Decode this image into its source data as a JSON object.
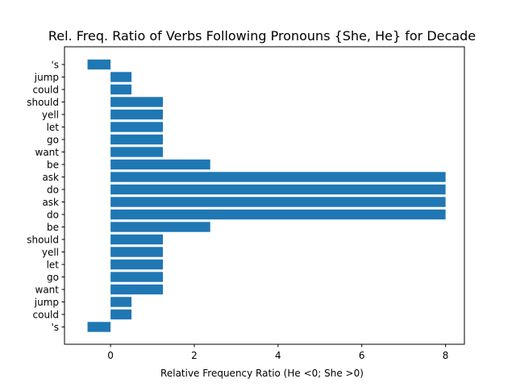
{
  "chart_data": {
    "type": "bar",
    "orientation": "horizontal",
    "title": "Rel. Freq. Ratio of Verbs Following Pronouns {She, He} for Decade",
    "xlabel": "Relative Frequency Ratio (He <0; She >0)",
    "ylabel": "",
    "xlim": [
      -1.1,
      8.45
    ],
    "xticks": [
      0,
      2,
      4,
      6,
      8
    ],
    "xtick_labels": [
      "0",
      "2",
      "4",
      "6",
      "8"
    ],
    "grid": false,
    "legend": "none",
    "bar_color": "#1f77b4",
    "categories": [
      "'s",
      "jump",
      "could",
      "should",
      "yell",
      "let",
      "go",
      "want",
      "be",
      "ask",
      "do",
      "ask",
      "do",
      "be",
      "should",
      "yell",
      "let",
      "go",
      "want",
      "jump",
      "could",
      "'s"
    ],
    "values": [
      -0.55,
      0.5,
      0.5,
      1.25,
      1.25,
      1.25,
      1.25,
      1.25,
      2.38,
      8.0,
      8.0,
      8.0,
      8.0,
      2.38,
      1.25,
      1.25,
      1.25,
      1.25,
      1.25,
      0.5,
      0.5,
      -0.55
    ]
  }
}
